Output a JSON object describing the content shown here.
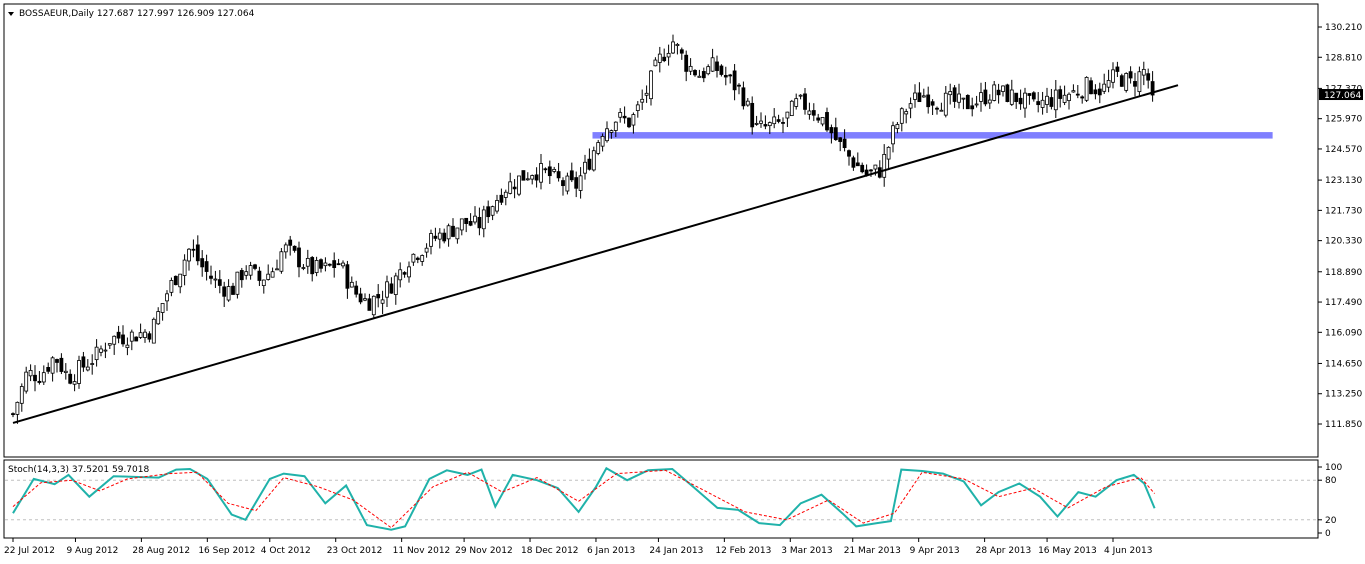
{
  "chart_data": [
    {
      "type": "candlestick",
      "symbol": "BOSSAEUR",
      "timeframe": "Daily",
      "header": "BOSSAEUR,Daily  127.687 127.997 126.909 127.064",
      "ohlc_last": {
        "open": 127.687,
        "high": 127.997,
        "low": 126.909,
        "close": 127.064
      },
      "current_price_label": "127.064",
      "y_ticks": [
        "130.210",
        "128.810",
        "127.370",
        "125.970",
        "124.570",
        "123.130",
        "121.730",
        "120.330",
        "118.890",
        "117.490",
        "116.090",
        "114.650",
        "113.250",
        "111.850"
      ],
      "ylim": [
        111.85,
        130.21
      ],
      "x_ticks": [
        "22 Jul 2012",
        "9 Aug 2012",
        "28 Aug 2012",
        "16 Sep 2012",
        "4 Oct 2012",
        "23 Oct 2012",
        "11 Nov 2012",
        "29 Nov 2012",
        "18 Dec 2012",
        "6 Jan 2013",
        "24 Jan 2013",
        "12 Feb 2013",
        "3 Mar 2013",
        "21 Mar 2013",
        "9 Apr 2013",
        "28 Apr 2013",
        "16 May 2013",
        "4 Jun 2013"
      ],
      "close_path": [
        {
          "date": "2012-07-22",
          "value": 112.3
        },
        {
          "date": "2012-07-26",
          "value": 114.2
        },
        {
          "date": "2012-07-30",
          "value": 114.1
        },
        {
          "date": "2012-08-03",
          "value": 115.0
        },
        {
          "date": "2012-08-07",
          "value": 114.0
        },
        {
          "date": "2012-08-11",
          "value": 114.5
        },
        {
          "date": "2012-08-15",
          "value": 115.0
        },
        {
          "date": "2012-08-19",
          "value": 115.8
        },
        {
          "date": "2012-08-23",
          "value": 115.9
        },
        {
          "date": "2012-08-27",
          "value": 116.0
        },
        {
          "date": "2012-08-31",
          "value": 116.2
        },
        {
          "date": "2012-09-04",
          "value": 117.8
        },
        {
          "date": "2012-09-08",
          "value": 119.0
        },
        {
          "date": "2012-09-11",
          "value": 120.0
        },
        {
          "date": "2012-09-15",
          "value": 119.0
        },
        {
          "date": "2012-09-19",
          "value": 118.3
        },
        {
          "date": "2012-09-23",
          "value": 118.0
        },
        {
          "date": "2012-09-27",
          "value": 119.1
        },
        {
          "date": "2012-10-01",
          "value": 118.5
        },
        {
          "date": "2012-10-05",
          "value": 119.0
        },
        {
          "date": "2012-10-08",
          "value": 120.0
        },
        {
          "date": "2012-10-12",
          "value": 119.5
        },
        {
          "date": "2012-10-16",
          "value": 119.0
        },
        {
          "date": "2012-10-20",
          "value": 119.0
        },
        {
          "date": "2012-10-24",
          "value": 119.3
        },
        {
          "date": "2012-10-28",
          "value": 118.0
        },
        {
          "date": "2012-11-01",
          "value": 117.5
        },
        {
          "date": "2012-11-05",
          "value": 117.8
        },
        {
          "date": "2012-11-09",
          "value": 118.5
        },
        {
          "date": "2012-11-13",
          "value": 119.5
        },
        {
          "date": "2012-11-17",
          "value": 120.0
        },
        {
          "date": "2012-11-21",
          "value": 120.5
        },
        {
          "date": "2012-11-25",
          "value": 120.8
        },
        {
          "date": "2012-11-29",
          "value": 121.2
        },
        {
          "date": "2012-12-03",
          "value": 121.0
        },
        {
          "date": "2012-12-07",
          "value": 122.0
        },
        {
          "date": "2012-12-11",
          "value": 122.8
        },
        {
          "date": "2012-12-15",
          "value": 123.2
        },
        {
          "date": "2012-12-19",
          "value": 123.6
        },
        {
          "date": "2012-12-23",
          "value": 123.4
        },
        {
          "date": "2012-12-27",
          "value": 123.0
        },
        {
          "date": "2012-12-31",
          "value": 122.8
        },
        {
          "date": "2013-01-04",
          "value": 124.0
        },
        {
          "date": "2013-01-08",
          "value": 125.5
        },
        {
          "date": "2013-01-12",
          "value": 126.0
        },
        {
          "date": "2013-01-16",
          "value": 125.8
        },
        {
          "date": "2013-01-20",
          "value": 127.0
        },
        {
          "date": "2013-01-24",
          "value": 128.6
        },
        {
          "date": "2013-01-28",
          "value": 129.6
        },
        {
          "date": "2013-02-01",
          "value": 128.5
        },
        {
          "date": "2013-02-05",
          "value": 128.0
        },
        {
          "date": "2013-02-09",
          "value": 128.4
        },
        {
          "date": "2013-02-13",
          "value": 127.8
        },
        {
          "date": "2013-02-17",
          "value": 127.2
        },
        {
          "date": "2013-02-21",
          "value": 125.5
        },
        {
          "date": "2013-02-25",
          "value": 125.6
        },
        {
          "date": "2013-03-01",
          "value": 125.8
        },
        {
          "date": "2013-03-05",
          "value": 126.7
        },
        {
          "date": "2013-03-09",
          "value": 126.5
        },
        {
          "date": "2013-03-13",
          "value": 125.8
        },
        {
          "date": "2013-03-17",
          "value": 124.8
        },
        {
          "date": "2013-03-21",
          "value": 124.0
        },
        {
          "date": "2013-03-25",
          "value": 123.4
        },
        {
          "date": "2013-03-29",
          "value": 123.6
        },
        {
          "date": "2013-04-02",
          "value": 125.5
        },
        {
          "date": "2013-04-06",
          "value": 126.6
        },
        {
          "date": "2013-04-10",
          "value": 127.1
        },
        {
          "date": "2013-04-14",
          "value": 126.8
        },
        {
          "date": "2013-04-18",
          "value": 126.8
        },
        {
          "date": "2013-04-22",
          "value": 126.6
        },
        {
          "date": "2013-04-26",
          "value": 126.8
        },
        {
          "date": "2013-04-30",
          "value": 127.2
        },
        {
          "date": "2013-05-04",
          "value": 127.1
        },
        {
          "date": "2013-05-08",
          "value": 126.9
        },
        {
          "date": "2013-05-12",
          "value": 126.5
        },
        {
          "date": "2013-05-16",
          "value": 126.8
        },
        {
          "date": "2013-05-20",
          "value": 127.0
        },
        {
          "date": "2013-05-24",
          "value": 127.2
        },
        {
          "date": "2013-05-28",
          "value": 127.5
        },
        {
          "date": "2013-06-01",
          "value": 127.3
        },
        {
          "date": "2013-06-05",
          "value": 128.0
        },
        {
          "date": "2013-06-09",
          "value": 127.6
        },
        {
          "date": "2013-06-13",
          "value": 128.2
        },
        {
          "date": "2013-06-16",
          "value": 127.06
        }
      ],
      "trendline": [
        {
          "date": "2012-07-22",
          "value": 111.9
        },
        {
          "date": "2013-06-18",
          "value": 127.3
        }
      ],
      "support_zone": {
        "from_date": "2013-01-05",
        "to_date": "2013-07-20",
        "value_low": 125.05,
        "value_high": 125.35,
        "color": "#7f7fff"
      },
      "colors": {
        "candle": "#000000",
        "trendline": "#000000",
        "zone": "#7f7fff"
      }
    },
    {
      "type": "line",
      "indicator_label": "Stoch(14,3,3) 37.5201 59.7018",
      "main_value": 37.5201,
      "signal_value": 59.7018,
      "y_ticks": [
        "100",
        "80",
        "20",
        "0"
      ],
      "levels": [
        20,
        80
      ],
      "ylim": [
        0,
        100
      ],
      "series": [
        {
          "name": "Main",
          "color": "#20b2aa",
          "points": [
            {
              "date": "2012-07-22",
              "value": 30
            },
            {
              "date": "2012-07-28",
              "value": 82
            },
            {
              "date": "2012-08-03",
              "value": 74
            },
            {
              "date": "2012-08-07",
              "value": 88
            },
            {
              "date": "2012-08-13",
              "value": 55
            },
            {
              "date": "2012-08-20",
              "value": 86
            },
            {
              "date": "2012-08-26",
              "value": 85
            },
            {
              "date": "2012-09-02",
              "value": 84
            },
            {
              "date": "2012-09-07",
              "value": 96
            },
            {
              "date": "2012-09-11",
              "value": 97
            },
            {
              "date": "2012-09-16",
              "value": 82
            },
            {
              "date": "2012-09-23",
              "value": 28
            },
            {
              "date": "2012-09-27",
              "value": 20
            },
            {
              "date": "2012-10-04",
              "value": 82
            },
            {
              "date": "2012-10-08",
              "value": 90
            },
            {
              "date": "2012-10-14",
              "value": 86
            },
            {
              "date": "2012-10-20",
              "value": 45
            },
            {
              "date": "2012-10-26",
              "value": 72
            },
            {
              "date": "2012-11-01",
              "value": 12
            },
            {
              "date": "2012-11-08",
              "value": 5
            },
            {
              "date": "2012-11-12",
              "value": 10
            },
            {
              "date": "2012-11-19",
              "value": 82
            },
            {
              "date": "2012-11-24",
              "value": 95
            },
            {
              "date": "2012-11-30",
              "value": 88
            },
            {
              "date": "2012-12-04",
              "value": 96
            },
            {
              "date": "2012-12-08",
              "value": 40
            },
            {
              "date": "2012-12-13",
              "value": 88
            },
            {
              "date": "2012-12-20",
              "value": 80
            },
            {
              "date": "2012-12-26",
              "value": 68
            },
            {
              "date": "2013-01-01",
              "value": 32
            },
            {
              "date": "2013-01-06",
              "value": 70
            },
            {
              "date": "2013-01-09",
              "value": 98
            },
            {
              "date": "2013-01-15",
              "value": 80
            },
            {
              "date": "2013-01-21",
              "value": 95
            },
            {
              "date": "2013-01-28",
              "value": 97
            },
            {
              "date": "2013-02-03",
              "value": 70
            },
            {
              "date": "2013-02-10",
              "value": 38
            },
            {
              "date": "2013-02-16",
              "value": 35
            },
            {
              "date": "2013-02-22",
              "value": 15
            },
            {
              "date": "2013-02-28",
              "value": 12
            },
            {
              "date": "2013-03-06",
              "value": 45
            },
            {
              "date": "2013-03-12",
              "value": 58
            },
            {
              "date": "2013-03-18",
              "value": 30
            },
            {
              "date": "2013-03-22",
              "value": 10
            },
            {
              "date": "2013-03-28",
              "value": 15
            },
            {
              "date": "2013-04-01",
              "value": 18
            },
            {
              "date": "2013-04-04",
              "value": 96
            },
            {
              "date": "2013-04-10",
              "value": 94
            },
            {
              "date": "2013-04-16",
              "value": 90
            },
            {
              "date": "2013-04-22",
              "value": 78
            },
            {
              "date": "2013-04-27",
              "value": 42
            },
            {
              "date": "2013-05-02",
              "value": 62
            },
            {
              "date": "2013-05-08",
              "value": 75
            },
            {
              "date": "2013-05-14",
              "value": 55
            },
            {
              "date": "2013-05-19",
              "value": 25
            },
            {
              "date": "2013-05-25",
              "value": 62
            },
            {
              "date": "2013-05-30",
              "value": 55
            },
            {
              "date": "2013-06-05",
              "value": 80
            },
            {
              "date": "2013-06-10",
              "value": 88
            },
            {
              "date": "2013-06-13",
              "value": 75
            },
            {
              "date": "2013-06-16",
              "value": 37.5
            }
          ]
        },
        {
          "name": "Signal",
          "color": "#ff0000",
          "points": [
            {
              "date": "2012-07-22",
              "value": 40
            },
            {
              "date": "2012-07-30",
              "value": 76
            },
            {
              "date": "2012-08-08",
              "value": 80
            },
            {
              "date": "2012-08-16",
              "value": 64
            },
            {
              "date": "2012-08-24",
              "value": 82
            },
            {
              "date": "2012-09-05",
              "value": 90
            },
            {
              "date": "2012-09-13",
              "value": 92
            },
            {
              "date": "2012-09-22",
              "value": 45
            },
            {
              "date": "2012-09-30",
              "value": 34
            },
            {
              "date": "2012-10-08",
              "value": 84
            },
            {
              "date": "2012-10-18",
              "value": 70
            },
            {
              "date": "2012-10-28",
              "value": 50
            },
            {
              "date": "2012-11-08",
              "value": 8
            },
            {
              "date": "2012-11-20",
              "value": 70
            },
            {
              "date": "2012-11-30",
              "value": 92
            },
            {
              "date": "2012-12-10",
              "value": 62
            },
            {
              "date": "2012-12-20",
              "value": 84
            },
            {
              "date": "2013-01-01",
              "value": 48
            },
            {
              "date": "2013-01-12",
              "value": 90
            },
            {
              "date": "2013-01-26",
              "value": 95
            },
            {
              "date": "2013-02-06",
              "value": 65
            },
            {
              "date": "2013-02-18",
              "value": 32
            },
            {
              "date": "2013-03-02",
              "value": 20
            },
            {
              "date": "2013-03-14",
              "value": 50
            },
            {
              "date": "2013-03-24",
              "value": 15
            },
            {
              "date": "2013-04-02",
              "value": 30
            },
            {
              "date": "2013-04-10",
              "value": 92
            },
            {
              "date": "2013-04-22",
              "value": 82
            },
            {
              "date": "2013-05-02",
              "value": 55
            },
            {
              "date": "2013-05-12",
              "value": 68
            },
            {
              "date": "2013-05-22",
              "value": 38
            },
            {
              "date": "2013-06-02",
              "value": 70
            },
            {
              "date": "2013-06-12",
              "value": 84
            },
            {
              "date": "2013-06-16",
              "value": 59.7
            }
          ]
        }
      ]
    }
  ]
}
